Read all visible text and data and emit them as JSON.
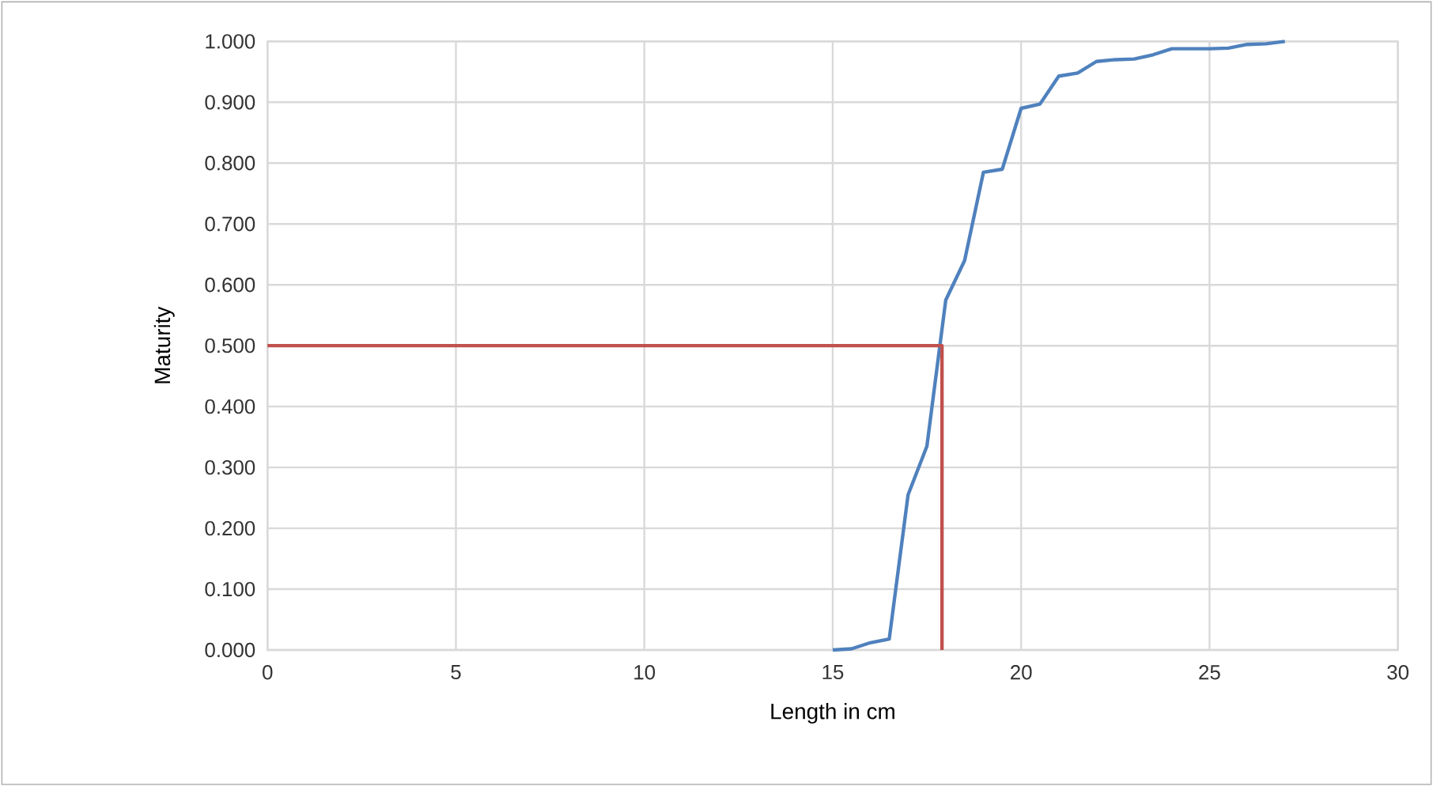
{
  "chart_data": {
    "type": "line",
    "xlabel": "Length in cm",
    "ylabel": "Maturity",
    "xlim": [
      0,
      30
    ],
    "xticks": [
      0,
      5,
      10,
      15,
      20,
      25,
      30
    ],
    "ylim": [
      0,
      1
    ],
    "yticks": [
      {
        "value": 0,
        "label": "0.000"
      },
      {
        "value": 0.1,
        "label": "0.100"
      },
      {
        "value": 0.2,
        "label": "0.200"
      },
      {
        "value": 0.3,
        "label": "0.300"
      },
      {
        "value": 0.4,
        "label": "0.400"
      },
      {
        "value": 0.5,
        "label": "0.500"
      },
      {
        "value": 0.6,
        "label": "0.600"
      },
      {
        "value": 0.7,
        "label": "0.700"
      },
      {
        "value": 0.8,
        "label": "0.800"
      },
      {
        "value": 0.9,
        "label": "0.900"
      },
      {
        "value": 1,
        "label": "1.000"
      }
    ],
    "grid": true,
    "marker": "none",
    "line_style": "solid",
    "series": [
      {
        "color": "#4f81bd",
        "x": [
          15,
          15.5,
          16,
          16.5,
          17,
          17.5,
          18,
          18.5,
          19,
          19.5,
          20,
          20.5,
          21,
          21.5,
          22,
          22.5,
          23,
          23.5,
          24,
          24.5,
          25,
          25.5,
          26,
          26.5,
          27
        ],
        "values": [
          0,
          0.002,
          0.012,
          0.018,
          0.255,
          0.335,
          0.575,
          0.64,
          0.785,
          0.79,
          0.89,
          0.897,
          0.943,
          0.948,
          0.967,
          0.97,
          0.971,
          0.978,
          0.988,
          0.988,
          0.988,
          0.989,
          0.995,
          0.996,
          1.0
        ]
      },
      {
        "color": "#c0504d",
        "x": [
          0,
          17.9,
          17.9
        ],
        "values": [
          0.5,
          0.5,
          0
        ]
      }
    ]
  }
}
